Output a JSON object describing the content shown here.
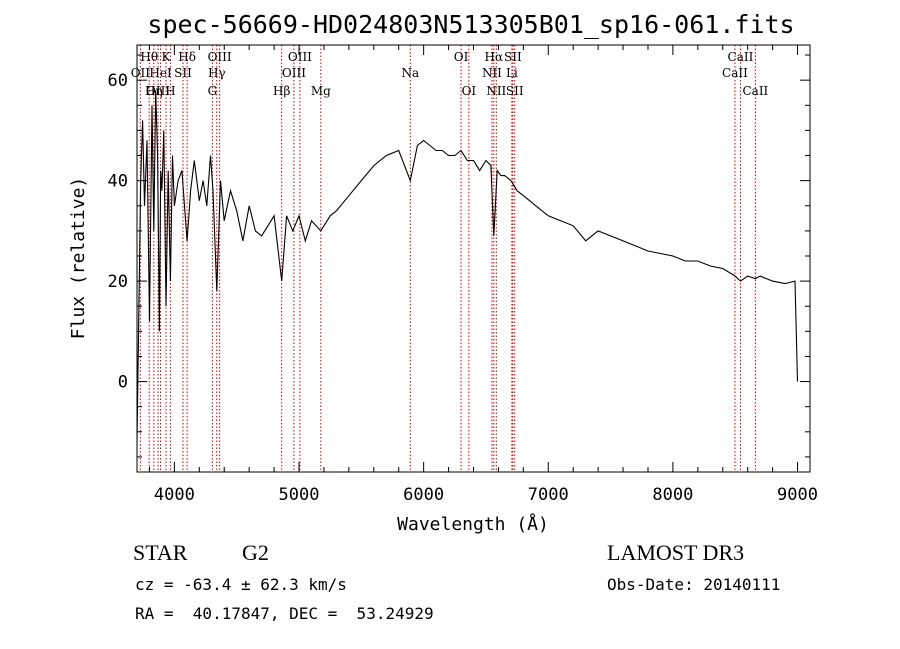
{
  "chart_data": {
    "type": "line",
    "title": "spec-56669-HD024803N513305B01_sp16-061.fits",
    "xlabel": "Wavelength (Å)",
    "ylabel": "Flux (relative)",
    "xlim": [
      3700,
      9100
    ],
    "ylim": [
      -18,
      67
    ],
    "xticks": [
      4000,
      5000,
      6000,
      7000,
      8000,
      9000
    ],
    "yticks": [
      0,
      20,
      40,
      60
    ],
    "series": [
      {
        "name": "flux",
        "x": [
          3700,
          3715,
          3730,
          3745,
          3760,
          3780,
          3800,
          3820,
          3835,
          3850,
          3865,
          3880,
          3890,
          3900,
          3915,
          3933,
          3950,
          3968,
          3985,
          4000,
          4030,
          4060,
          4102,
          4130,
          4160,
          4200,
          4230,
          4260,
          4290,
          4310,
          4340,
          4370,
          4400,
          4450,
          4500,
          4550,
          4600,
          4650,
          4700,
          4750,
          4800,
          4861,
          4900,
          4950,
          5000,
          5050,
          5100,
          5175,
          5250,
          5300,
          5400,
          5500,
          5600,
          5700,
          5800,
          5893,
          5950,
          6000,
          6050,
          6100,
          6150,
          6200,
          6250,
          6300,
          6350,
          6400,
          6450,
          6500,
          6540,
          6563,
          6590,
          6620,
          6650,
          6700,
          6750,
          6800,
          6850,
          6900,
          7000,
          7100,
          7200,
          7300,
          7400,
          7500,
          7600,
          7700,
          7800,
          7900,
          8000,
          8100,
          8200,
          8300,
          8400,
          8500,
          8542,
          8600,
          8662,
          8700,
          8800,
          8900,
          8980,
          9000
        ],
        "y": [
          -12,
          15,
          40,
          52,
          35,
          48,
          12,
          55,
          30,
          58,
          45,
          10,
          42,
          38,
          50,
          15,
          42,
          20,
          45,
          35,
          40,
          42,
          28,
          38,
          44,
          36,
          40,
          35,
          45,
          38,
          18,
          40,
          32,
          38,
          34,
          28,
          35,
          30,
          29,
          31,
          33,
          20,
          33,
          30,
          33,
          28,
          32,
          30,
          33,
          34,
          37,
          40,
          43,
          45,
          46,
          40,
          47,
          48,
          47,
          46,
          46,
          45,
          45,
          46,
          44,
          44,
          42,
          44,
          43,
          29,
          42,
          41,
          41,
          40,
          38,
          37,
          36,
          35,
          33,
          32,
          31,
          28,
          30,
          29,
          28,
          27,
          26,
          25.5,
          25,
          24,
          24,
          23,
          22.5,
          21,
          20,
          21,
          20.5,
          21,
          20,
          19.5,
          20,
          0
        ]
      }
    ],
    "line_markers": [
      {
        "label": "Hθ",
        "x": 3798,
        "row": 1
      },
      {
        "label": "OII",
        "x": 3727,
        "row": 2
      },
      {
        "label": "OIII",
        "x": 3869,
        "row": 3
      },
      {
        "label": "K",
        "x": 3933,
        "row": 1
      },
      {
        "label": "HeI",
        "x": 3889,
        "row": 2
      },
      {
        "label": "Hη",
        "x": 3835,
        "row": 3
      },
      {
        "label": "Hδ",
        "x": 4102,
        "row": 1
      },
      {
        "label": "SII",
        "x": 4069,
        "row": 2
      },
      {
        "label": "H",
        "x": 3968,
        "row": 3
      },
      {
        "label": "OIII",
        "x": 4363,
        "row": 1
      },
      {
        "label": "Hγ",
        "x": 4340,
        "row": 2
      },
      {
        "label": "G",
        "x": 4305,
        "row": 3
      },
      {
        "label": "OIII",
        "x": 5007,
        "row": 1
      },
      {
        "label": "OIII",
        "x": 4959,
        "row": 2
      },
      {
        "label": "Hβ",
        "x": 4861,
        "row": 3
      },
      {
        "label": "Mg",
        "x": 5175,
        "row": 3
      },
      {
        "label": "Na",
        "x": 5893,
        "row": 2
      },
      {
        "label": "OI",
        "x": 6300,
        "row": 1
      },
      {
        "label": "OI",
        "x": 6363,
        "row": 3
      },
      {
        "label": "Hα",
        "x": 6563,
        "row": 1
      },
      {
        "label": "NII",
        "x": 6548,
        "row": 2
      },
      {
        "label": "NII",
        "x": 6583,
        "row": 3
      },
      {
        "label": "SII",
        "x": 6716,
        "row": 1
      },
      {
        "label": "Li",
        "x": 6708,
        "row": 2
      },
      {
        "label": "SII",
        "x": 6731,
        "row": 3
      },
      {
        "label": "CaII",
        "x": 8542,
        "row": 1
      },
      {
        "label": "CaII",
        "x": 8498,
        "row": 2
      },
      {
        "label": "CaII",
        "x": 8662,
        "row": 3
      }
    ]
  },
  "info": {
    "object_type": "STAR",
    "subclass": "G2",
    "survey": "LAMOST DR3",
    "redshift": "cz = -63.4 ± 62.3 km/s",
    "obs_date": "Obs-Date: 20140111",
    "coords": "RA =  40.17847, DEC =  53.24929"
  },
  "colors": {
    "line": "#000000",
    "marker": "#cc0000"
  }
}
